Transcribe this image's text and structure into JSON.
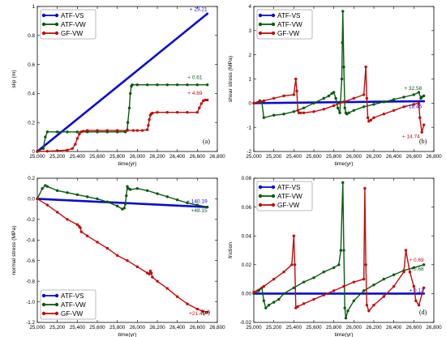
{
  "chart_data": [
    {
      "type": "line",
      "panel_label": "(a)",
      "xlabel": "time(yr)",
      "ylabel": "slip (m)",
      "xlim": [
        25000,
        26800
      ],
      "ylim": [
        0,
        1.0
      ],
      "xticks": [
        25000,
        25200,
        25400,
        25600,
        25800,
        26000,
        26200,
        26400,
        26600,
        26800
      ],
      "xtick_labels": [
        "25,000",
        "25,200",
        "25,400",
        "25,600",
        "25,800",
        "26,000",
        "26,200",
        "26,400",
        "26,600",
        "26,800"
      ],
      "yticks": [
        0,
        0.2,
        0.4,
        0.6,
        0.8,
        1.0
      ],
      "ytick_labels": [
        "0",
        "0.2",
        "0.4",
        "0.6",
        "0.8",
        "1"
      ],
      "legend_position": "top-left",
      "series": [
        {
          "name": "ATF-VS",
          "color": "#0b0bd0",
          "x": [
            25000,
            26700
          ],
          "y": [
            0,
            0.95
          ]
        },
        {
          "name": "ATF-VW",
          "color": "#0b5a10",
          "x": [
            25000,
            25060,
            25080,
            25100,
            25200,
            25300,
            25400,
            25500,
            25600,
            25700,
            25800,
            25880,
            25900,
            25905,
            25920,
            25930,
            25940,
            25950,
            26000,
            26100,
            26200,
            26300,
            26400,
            26500,
            26600,
            26700
          ],
          "y": [
            0,
            0.02,
            0.1,
            0.135,
            0.135,
            0.135,
            0.135,
            0.135,
            0.135,
            0.135,
            0.135,
            0.135,
            0.15,
            0.2,
            0.3,
            0.4,
            0.45,
            0.46,
            0.46,
            0.46,
            0.46,
            0.46,
            0.46,
            0.46,
            0.46,
            0.46
          ]
        },
        {
          "name": "GF-VW",
          "color": "#c00c0c",
          "x": [
            25000,
            25100,
            25200,
            25300,
            25350,
            25380,
            25400,
            25420,
            25440,
            25460,
            25500,
            25600,
            25700,
            25800,
            25900,
            25960,
            26000,
            26050,
            26100,
            26110,
            26120,
            26130,
            26140,
            26150,
            26200,
            26300,
            26400,
            26500,
            26600,
            26620,
            26640,
            26660,
            26680,
            26700
          ],
          "y": [
            0,
            0.002,
            0.005,
            0.01,
            0.02,
            0.05,
            0.09,
            0.12,
            0.135,
            0.14,
            0.145,
            0.145,
            0.145,
            0.145,
            0.145,
            0.145,
            0.145,
            0.145,
            0.15,
            0.18,
            0.22,
            0.25,
            0.26,
            0.265,
            0.27,
            0.27,
            0.27,
            0.27,
            0.27,
            0.3,
            0.33,
            0.35,
            0.355,
            0.355
          ]
        }
      ],
      "annotations": [
        {
          "text": "+ 23.21",
          "color": "#0b0bd0",
          "x": 26700,
          "y": 0.97
        },
        {
          "text": "+ 0.61",
          "color": "#0b5a10",
          "x": 26650,
          "y": 0.5
        },
        {
          "text": "+ 4.69",
          "color": "#c00c0c",
          "x": 26650,
          "y": 0.39
        }
      ]
    },
    {
      "type": "line",
      "panel_label": "(b)",
      "xlabel": "time(yr)",
      "ylabel": "shear stress (MPa)",
      "xlim": [
        25000,
        26800
      ],
      "ylim": [
        -2,
        4
      ],
      "xticks": [
        25000,
        25200,
        25400,
        25600,
        25800,
        26000,
        26200,
        26400,
        26600,
        26800
      ],
      "xtick_labels": [
        "25,000",
        "25,200",
        "25,400",
        "25,600",
        "25,800",
        "26,000",
        "26,200",
        "26,400",
        "26,600",
        "26,800"
      ],
      "yticks": [
        -2,
        -1,
        0,
        1,
        2,
        3,
        4
      ],
      "ytick_labels": [
        "-2",
        "-1",
        "0",
        "1",
        "2",
        "3",
        "4"
      ],
      "legend_position": "top-left",
      "series": [
        {
          "name": "ATF-VS",
          "color": "#0b0bd0",
          "x": [
            25000,
            26700
          ],
          "y": [
            0,
            0.08
          ]
        },
        {
          "name": "ATF-VW",
          "color": "#0b5a10",
          "x": [
            25000,
            25060,
            25080,
            25100,
            25200,
            25300,
            25400,
            25500,
            25600,
            25700,
            25750,
            25780,
            25800,
            25820,
            25840,
            25860,
            25880,
            25885,
            25890,
            25900,
            25910,
            25920,
            25930,
            25950,
            26000,
            26100,
            26200,
            26300,
            26400,
            26500,
            26600,
            26650,
            26670,
            26680,
            26700
          ],
          "y": [
            0,
            0.1,
            0.05,
            -0.6,
            -0.5,
            -0.45,
            -0.35,
            -0.2,
            0,
            0.2,
            0.3,
            0.4,
            0.45,
            0.2,
            -0.2,
            -0.4,
            1.0,
            2.5,
            3.8,
            1.5,
            -0.2,
            -0.4,
            -0.45,
            -0.4,
            -0.3,
            -0.15,
            -0.05,
            0.05,
            0.15,
            0.25,
            0.35,
            0.45,
            0.2,
            0.25,
            0.3
          ]
        },
        {
          "name": "GF-VW",
          "color": "#c00c0c",
          "x": [
            25000,
            25050,
            25100,
            25200,
            25300,
            25400,
            25420,
            25430,
            25440,
            25450,
            25470,
            25500,
            25600,
            25700,
            25800,
            25900,
            26000,
            26100,
            26120,
            26130,
            26140,
            26150,
            26170,
            26200,
            26300,
            26400,
            26500,
            26600,
            26650,
            26660,
            26680,
            26700
          ],
          "y": [
            0,
            0.05,
            0.1,
            0.2,
            0.3,
            0.35,
            1.0,
            0.5,
            -0.3,
            -0.4,
            -0.4,
            -0.4,
            -0.35,
            -0.25,
            -0.1,
            0.05,
            0.2,
            0.35,
            1.5,
            0.2,
            -0.6,
            -0.75,
            -0.7,
            -0.6,
            -0.45,
            -0.3,
            -0.15,
            -0.05,
            0,
            -0.6,
            -1.2,
            -0.9
          ]
        }
      ],
      "annotations": [
        {
          "text": "+ 32.58",
          "color": "#0b5a10",
          "x": 26680,
          "y": 0.55
        },
        {
          "text": "+ 18.45",
          "color": "#0b0bd0",
          "x": 26680,
          "y": -0.2
        },
        {
          "text": "+ 14.74",
          "color": "#c00c0c",
          "x": 26660,
          "y": -1.45
        }
      ]
    },
    {
      "type": "line",
      "panel_label": "(c)",
      "xlabel": "time(yr)",
      "ylabel": "normal stress (MPa)",
      "xlim": [
        25000,
        26800
      ],
      "ylim": [
        -1.2,
        0.2
      ],
      "xticks": [
        25000,
        25200,
        25400,
        25600,
        25800,
        26000,
        26200,
        26400,
        26600,
        26800
      ],
      "xtick_labels": [
        "25,000",
        "25,200",
        "25,400",
        "25,600",
        "25,800",
        "26,000",
        "26,200",
        "26,400",
        "26,600",
        "26,800"
      ],
      "yticks": [
        -1.2,
        -1.0,
        -0.8,
        -0.6,
        -0.4,
        -0.2,
        0.0,
        0.2
      ],
      "ytick_labels": [
        "-1.2",
        "-1.0",
        "-0.8",
        "-0.6",
        "-0.4",
        "-0.2",
        "0.0",
        "0.2"
      ],
      "legend_position": "bottom-left",
      "series": [
        {
          "name": "ATF-VS",
          "color": "#0b0bd0",
          "x": [
            25000,
            26700
          ],
          "y": [
            0,
            -0.08
          ]
        },
        {
          "name": "ATF-VW",
          "color": "#0b5a10",
          "x": [
            25000,
            25050,
            25080,
            25100,
            25200,
            25300,
            25400,
            25500,
            25600,
            25700,
            25800,
            25850,
            25870,
            25880,
            25890,
            25900,
            25910,
            25930,
            26000,
            26100,
            26200,
            26300,
            26400,
            26500,
            26600,
            26700
          ],
          "y": [
            0,
            0.1,
            0.13,
            0.12,
            0.08,
            0.06,
            0.04,
            0.02,
            0,
            -0.03,
            -0.07,
            -0.1,
            -0.09,
            -0.05,
            0.03,
            0.12,
            0.1,
            0.09,
            0.1,
            0.08,
            0.05,
            0.02,
            -0.01,
            -0.04,
            -0.06,
            -0.08
          ]
        },
        {
          "name": "GF-VW",
          "color": "#c00c0c",
          "x": [
            25000,
            25100,
            25200,
            25300,
            25400,
            25420,
            25430,
            25440,
            25500,
            25600,
            25700,
            25800,
            25900,
            26000,
            26100,
            26120,
            26130,
            26140,
            26150,
            26200,
            26300,
            26400,
            26500,
            26600,
            26650,
            26700
          ],
          "y": [
            0,
            -0.06,
            -0.13,
            -0.2,
            -0.25,
            -0.27,
            -0.28,
            -0.32,
            -0.36,
            -0.42,
            -0.48,
            -0.55,
            -0.6,
            -0.66,
            -0.72,
            -0.73,
            -0.7,
            -0.72,
            -0.76,
            -0.8,
            -0.87,
            -0.95,
            -1.02,
            -1.07,
            -1.09,
            -1.1
          ]
        }
      ],
      "annotations": [
        {
          "text": "+ 140.19",
          "color": "#0b0bd0",
          "x": 26700,
          "y": -0.04
        },
        {
          "text": "+48.15",
          "color": "#0b5a10",
          "x": 26700,
          "y": -0.13
        },
        {
          "text": "+21.45",
          "color": "#c00c0c",
          "x": 26680,
          "y": -1.13
        }
      ]
    },
    {
      "type": "line",
      "panel_label": "(d)",
      "xlabel": "time(yr)",
      "ylabel": "friction",
      "xlim": [
        25000,
        26800
      ],
      "ylim": [
        -0.02,
        0.08
      ],
      "xticks": [
        25000,
        25200,
        25400,
        25600,
        25800,
        26000,
        26200,
        26400,
        26600,
        26800
      ],
      "xtick_labels": [
        "25,000",
        "25,200",
        "25,400",
        "25,600",
        "25,800",
        "26,000",
        "26,200",
        "26,400",
        "26,600",
        "26,800"
      ],
      "yticks": [
        -0.02,
        0.0,
        0.02,
        0.04,
        0.06,
        0.08
      ],
      "ytick_labels": [
        "-0.02",
        "0.00",
        "0.02",
        "0.04",
        "0.06",
        "0.08"
      ],
      "legend_position": "top-left",
      "series": [
        {
          "name": "ATF-VS",
          "color": "#0b0bd0",
          "x": [
            25000,
            26700
          ],
          "y": [
            0,
            0
          ]
        },
        {
          "name": "ATF-VW",
          "color": "#0b5a10",
          "x": [
            25000,
            25050,
            25080,
            25100,
            25120,
            25150,
            25200,
            25250,
            25300,
            25400,
            25500,
            25600,
            25700,
            25800,
            25850,
            25870,
            25890,
            25900,
            25910,
            25920,
            25940,
            26000,
            26100,
            26200,
            26300,
            26400,
            26500,
            26600,
            26700
          ],
          "y": [
            0,
            0.002,
            0.004,
            -0.005,
            -0.01,
            -0.008,
            -0.006,
            -0.004,
            0,
            0.004,
            0.008,
            0.011,
            0.015,
            0.018,
            0.02,
            0.03,
            0.077,
            0.03,
            -0.01,
            -0.017,
            -0.012,
            -0.005,
            0.002,
            0.006,
            0.01,
            0.013,
            0.016,
            0.018,
            0.02
          ]
        },
        {
          "name": "GF-VW",
          "color": "#c00c0c",
          "x": [
            25000,
            25100,
            25200,
            25300,
            25380,
            25400,
            25410,
            25420,
            25440,
            25500,
            25600,
            25700,
            25800,
            25900,
            26000,
            26100,
            26110,
            26120,
            26130,
            26150,
            26200,
            26300,
            26400,
            26500,
            26520,
            26560,
            26600,
            26620,
            26650,
            26700
          ],
          "y": [
            0.001,
            0.005,
            0.01,
            0.015,
            0.02,
            0.04,
            0.02,
            -0.01,
            -0.009,
            -0.007,
            -0.004,
            -0.001,
            0.002,
            0.005,
            0.008,
            0.01,
            0.073,
            0.02,
            -0.008,
            -0.012,
            -0.008,
            -0.002,
            0.005,
            0.015,
            0.03,
            0.015,
            0.005,
            -0.005,
            -0.008,
            0.004
          ]
        }
      ],
      "annotations": [
        {
          "text": "+ 0.69",
          "color": "#c00c0c",
          "x": 26700,
          "y": 0.022
        },
        {
          "text": "+0.68",
          "color": "#0b5a10",
          "x": 26700,
          "y": 0.016
        },
        {
          "text": "+ 0.13",
          "color": "#0b0bd0",
          "x": 26700,
          "y": 0.001
        }
      ]
    }
  ]
}
